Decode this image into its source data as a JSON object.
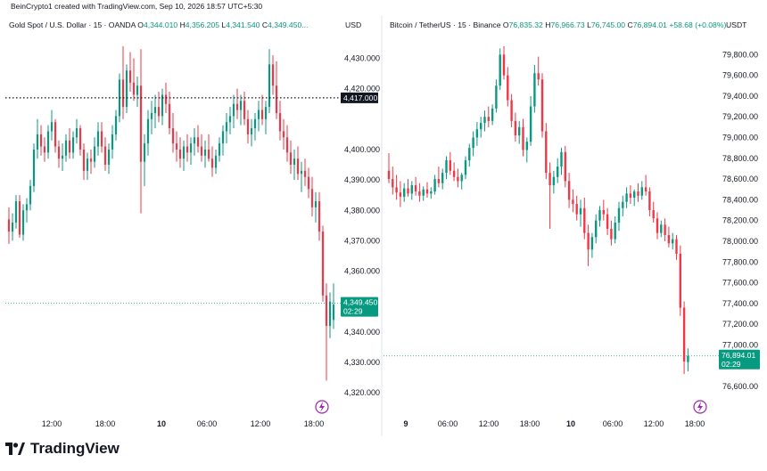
{
  "header": {
    "credit": "BeinCrypto1 created with TradingView.com, Sep 10, 2026 18:57 UTC+5:30"
  },
  "brand": "TradingView",
  "colors": {
    "up": "#089981",
    "down": "#f23645",
    "price_tag": "#089981",
    "crosshair_tag": "#131722"
  },
  "chart_data": [
    {
      "type": "candlestick",
      "title": "Gold Spot / U.S. Dollar · 15 · OANDA",
      "currency": "USD",
      "ohlc_legend": {
        "O": "4,344.010",
        "H": "4,356.205",
        "L": "4,341.540",
        "C": "4,349.450..."
      },
      "y_ticks": [
        "4,430.000",
        "4,420.000",
        "4,400.000",
        "4,390.000",
        "4,380.000",
        "4,370.000",
        "4,360.000",
        "4,340.000",
        "4,330.000",
        "4,320.000"
      ],
      "x_ticks": [
        "12:00",
        "18:00",
        "10",
        "06:00",
        "12:00",
        "18:00"
      ],
      "ylim": [
        4318,
        4436
      ],
      "crosshair_price": "4,417.000",
      "last_price": "4,349.450",
      "countdown": "02:29",
      "candles": [
        [
          4377,
          4381,
          4369,
          4373
        ],
        [
          4373,
          4379,
          4370,
          4376
        ],
        [
          4376,
          4385,
          4374,
          4383
        ],
        [
          4383,
          4385,
          4371,
          4372
        ],
        [
          4372,
          4382,
          4370,
          4380
        ],
        [
          4380,
          4384,
          4376,
          4382
        ],
        [
          4382,
          4390,
          4380,
          4388
        ],
        [
          4388,
          4402,
          4386,
          4400
        ],
        [
          4400,
          4410,
          4397,
          4405
        ],
        [
          4405,
          4408,
          4398,
          4401
        ],
        [
          4401,
          4404,
          4396,
          4399
        ],
        [
          4399,
          4408,
          4397,
          4406
        ],
        [
          4406,
          4413,
          4403,
          4409
        ],
        [
          4409,
          4410,
          4399,
          4401
        ],
        [
          4401,
          4403,
          4394,
          4397
        ],
        [
          4397,
          4402,
          4393,
          4398
        ],
        [
          4398,
          4405,
          4396,
          4403
        ],
        [
          4403,
          4407,
          4397,
          4399
        ],
        [
          4399,
          4406,
          4397,
          4404
        ],
        [
          4404,
          4410,
          4402,
          4407
        ],
        [
          4407,
          4408,
          4398,
          4400
        ],
        [
          4400,
          4402,
          4390,
          4393
        ],
        [
          4393,
          4399,
          4390,
          4397
        ],
        [
          4397,
          4400,
          4392,
          4396
        ],
        [
          4396,
          4404,
          4394,
          4401
        ],
        [
          4401,
          4409,
          4398,
          4406
        ],
        [
          4406,
          4409,
          4399,
          4401
        ],
        [
          4401,
          4404,
          4393,
          4395
        ],
        [
          4395,
          4402,
          4392,
          4400
        ],
        [
          4400,
          4408,
          4397,
          4405
        ],
        [
          4405,
          4413,
          4403,
          4411
        ],
        [
          4411,
          4425,
          4409,
          4423
        ],
        [
          4423,
          4434,
          4410,
          4414
        ],
        [
          4414,
          4428,
          4412,
          4426
        ],
        [
          4426,
          4432,
          4419,
          4422
        ],
        [
          4422,
          4430,
          4416,
          4418
        ],
        [
          4418,
          4424,
          4414,
          4421
        ],
        [
          4421,
          4433,
          4379,
          4396
        ],
        [
          4396,
          4405,
          4388,
          4402
        ],
        [
          4402,
          4413,
          4398,
          4410
        ],
        [
          4410,
          4416,
          4405,
          4412
        ],
        [
          4412,
          4418,
          4407,
          4414
        ],
        [
          4414,
          4419,
          4409,
          4411
        ],
        [
          4411,
          4420,
          4408,
          4418
        ],
        [
          4418,
          4422,
          4412,
          4415
        ],
        [
          4415,
          4419,
          4405,
          4407
        ],
        [
          4407,
          4412,
          4399,
          4402
        ],
        [
          4402,
          4406,
          4396,
          4400
        ],
        [
          4400,
          4404,
          4394,
          4397
        ],
        [
          4397,
          4403,
          4393,
          4401
        ],
        [
          4401,
          4405,
          4396,
          4399
        ],
        [
          4399,
          4404,
          4395,
          4402
        ],
        [
          4402,
          4407,
          4398,
          4404
        ],
        [
          4404,
          4408,
          4399,
          4401
        ],
        [
          4401,
          4405,
          4396,
          4398
        ],
        [
          4398,
          4403,
          4394,
          4400
        ],
        [
          4400,
          4405,
          4396,
          4397
        ],
        [
          4397,
          4401,
          4391,
          4394
        ],
        [
          4394,
          4400,
          4392,
          4398
        ],
        [
          4398,
          4404,
          4396,
          4402
        ],
        [
          4402,
          4408,
          4398,
          4406
        ],
        [
          4406,
          4412,
          4402,
          4409
        ],
        [
          4409,
          4414,
          4405,
          4411
        ],
        [
          4411,
          4418,
          4407,
          4415
        ],
        [
          4415,
          4420,
          4410,
          4413
        ],
        [
          4413,
          4418,
          4408,
          4416
        ],
        [
          4416,
          4419,
          4408,
          4410
        ],
        [
          4410,
          4413,
          4402,
          4405
        ],
        [
          4405,
          4410,
          4401,
          4407
        ],
        [
          4407,
          4412,
          4403,
          4410
        ],
        [
          4410,
          4416,
          4406,
          4413
        ],
        [
          4413,
          4418,
          4408,
          4410
        ],
        [
          4410,
          4416,
          4405,
          4414
        ],
        [
          4414,
          4433,
          4412,
          4428
        ],
        [
          4428,
          4431,
          4418,
          4421
        ],
        [
          4421,
          4429,
          4410,
          4412
        ],
        [
          4412,
          4416,
          4403,
          4406
        ],
        [
          4406,
          4410,
          4400,
          4404
        ],
        [
          4404,
          4408,
          4396,
          4399
        ],
        [
          4399,
          4403,
          4392,
          4395
        ],
        [
          4395,
          4400,
          4390,
          4397
        ],
        [
          4397,
          4401,
          4390,
          4392
        ],
        [
          4392,
          4396,
          4386,
          4393
        ],
        [
          4393,
          4397,
          4388,
          4391
        ],
        [
          4391,
          4394,
          4384,
          4387
        ],
        [
          4387,
          4391,
          4378,
          4381
        ],
        [
          4381,
          4386,
          4376,
          4383
        ],
        [
          4383,
          4386,
          4370,
          4373
        ],
        [
          4373,
          4375,
          4350,
          4352
        ],
        [
          4352,
          4356,
          4324,
          4342
        ],
        [
          4342,
          4353,
          4338,
          4350
        ],
        [
          4344,
          4356,
          4341,
          4349
        ]
      ]
    },
    {
      "type": "candlestick",
      "title": "Bitcoin / TetherUS · 15 · Binance",
      "currency": "USDT",
      "ohlc_legend": {
        "O": "76,835.32",
        "H": "76,966.73",
        "L": "76,745.00",
        "C": "76,894.01",
        "change": "+58.68 (+0.08%)"
      },
      "y_ticks": [
        "79,800.00",
        "79,600.00",
        "79,400.00",
        "79,200.00",
        "79,000.00",
        "78,800.00",
        "78,600.00",
        "78,400.00",
        "78,200.00",
        "78,000.00",
        "77,800.00",
        "77,600.00",
        "77,400.00",
        "77,200.00",
        "77,000.00",
        "76,600.00"
      ],
      "x_ticks": [
        "9",
        "06:00",
        "12:00",
        "18:00",
        "10",
        "06:00",
        "12:00",
        "18:00"
      ],
      "ylim": [
        76480,
        79940
      ],
      "last_price": "76,894.01",
      "countdown": "02:29",
      "candles": [
        [
          78680,
          78850,
          78560,
          78600
        ],
        [
          78600,
          78720,
          78450,
          78520
        ],
        [
          78520,
          78640,
          78400,
          78470
        ],
        [
          78470,
          78580,
          78330,
          78430
        ],
        [
          78430,
          78560,
          78380,
          78510
        ],
        [
          78510,
          78600,
          78430,
          78460
        ],
        [
          78460,
          78580,
          78400,
          78540
        ],
        [
          78540,
          78620,
          78440,
          78480
        ],
        [
          78480,
          78560,
          78380,
          78440
        ],
        [
          78440,
          78530,
          78390,
          78500
        ],
        [
          78500,
          78570,
          78420,
          78460
        ],
        [
          78460,
          78520,
          78410,
          78480
        ],
        [
          78480,
          78640,
          78450,
          78600
        ],
        [
          78600,
          78720,
          78520,
          78560
        ],
        [
          78560,
          78700,
          78500,
          78660
        ],
        [
          78660,
          78820,
          78600,
          78780
        ],
        [
          78780,
          78860,
          78640,
          78680
        ],
        [
          78680,
          78760,
          78580,
          78620
        ],
        [
          78620,
          78700,
          78520,
          78580
        ],
        [
          78580,
          78660,
          78500,
          78640
        ],
        [
          78640,
          78820,
          78600,
          78780
        ],
        [
          78780,
          78940,
          78720,
          78900
        ],
        [
          78900,
          79060,
          78820,
          79000
        ],
        [
          79000,
          79150,
          78920,
          79080
        ],
        [
          79080,
          79200,
          79000,
          79140
        ],
        [
          79140,
          79260,
          79060,
          79200
        ],
        [
          79200,
          79300,
          79100,
          79160
        ],
        [
          79160,
          79320,
          79120,
          79280
        ],
        [
          79280,
          79560,
          79240,
          79500
        ],
        [
          79500,
          79860,
          79460,
          79800
        ],
        [
          79800,
          79880,
          79560,
          79600
        ],
        [
          79600,
          79680,
          79300,
          79360
        ],
        [
          79360,
          79420,
          79100,
          79160
        ],
        [
          79160,
          79240,
          78960,
          79020
        ],
        [
          79020,
          79160,
          78940,
          79100
        ],
        [
          79100,
          79180,
          78820,
          78880
        ],
        [
          78880,
          79000,
          78760,
          78960
        ],
        [
          78960,
          79400,
          78920,
          79300
        ],
        [
          79300,
          79700,
          79240,
          79620
        ],
        [
          79620,
          79780,
          79500,
          79560
        ],
        [
          79560,
          79620,
          79000,
          79060
        ],
        [
          79060,
          79140,
          78600,
          78660
        ],
        [
          78660,
          78760,
          78120,
          78540
        ],
        [
          78540,
          78680,
          78460,
          78620
        ],
        [
          78620,
          78800,
          78560,
          78720
        ],
        [
          78720,
          78900,
          78640,
          78860
        ],
        [
          78860,
          78920,
          78520,
          78580
        ],
        [
          78580,
          78660,
          78320,
          78400
        ],
        [
          78400,
          78500,
          78280,
          78360
        ],
        [
          78360,
          78440,
          78200,
          78260
        ],
        [
          78260,
          78400,
          78140,
          78320
        ],
        [
          78320,
          78420,
          78020,
          78080
        ],
        [
          78080,
          78160,
          77760,
          77920
        ],
        [
          77920,
          78080,
          77840,
          78040
        ],
        [
          78040,
          78260,
          77980,
          78200
        ],
        [
          78200,
          78340,
          78140,
          78300
        ],
        [
          78300,
          78400,
          78200,
          78260
        ],
        [
          78260,
          78320,
          78060,
          78120
        ],
        [
          78120,
          78200,
          77960,
          78020
        ],
        [
          78020,
          78240,
          77980,
          78180
        ],
        [
          78180,
          78380,
          78100,
          78320
        ],
        [
          78320,
          78440,
          78240,
          78380
        ],
        [
          78380,
          78520,
          78320,
          78460
        ],
        [
          78460,
          78540,
          78360,
          78420
        ],
        [
          78420,
          78500,
          78340,
          78480
        ],
        [
          78480,
          78560,
          78380,
          78440
        ],
        [
          78440,
          78580,
          78400,
          78520
        ],
        [
          78520,
          78640,
          78440,
          78480
        ],
        [
          78480,
          78520,
          78240,
          78300
        ],
        [
          78300,
          78380,
          78180,
          78220
        ],
        [
          78220,
          78280,
          78020,
          78080
        ],
        [
          78080,
          78200,
          78040,
          78160
        ],
        [
          78160,
          78220,
          78000,
          78060
        ],
        [
          78060,
          78140,
          77940,
          77980
        ],
        [
          77980,
          78080,
          77920,
          78020
        ],
        [
          78020,
          78060,
          77820,
          77880
        ],
        [
          77880,
          77960,
          77280,
          77360
        ],
        [
          77360,
          77420,
          76720,
          76840
        ],
        [
          76835,
          76967,
          76745,
          76894
        ]
      ]
    }
  ]
}
